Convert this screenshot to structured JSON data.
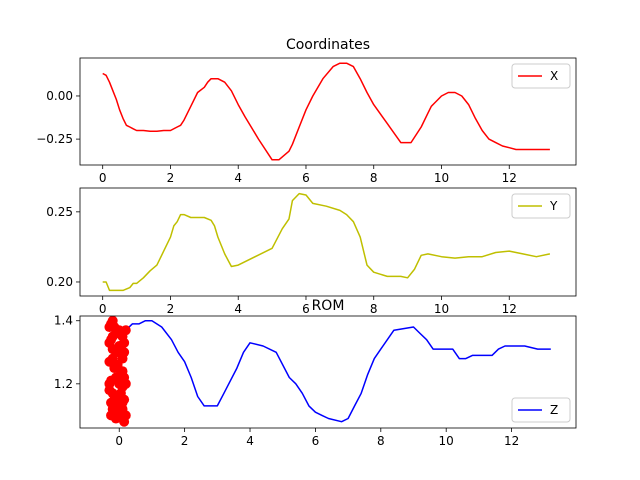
{
  "figure": {
    "title": "Coordinates"
  },
  "chart_data": [
    {
      "type": "line",
      "title": "Coordinates",
      "xlabel": "",
      "ylabel": "",
      "xlim": [
        -0.67,
        13.97
      ],
      "ylim": [
        -0.4,
        0.22
      ],
      "xticks": [
        0,
        2,
        4,
        6,
        8,
        10,
        12
      ],
      "yticks": [
        0.0,
        -0.25
      ],
      "ytick_labels": [
        "0.00",
        "−0.25"
      ],
      "legend": "top-right",
      "grid": false,
      "series": [
        {
          "name": "X",
          "color": "#ff0000",
          "x": [
            0.0,
            0.1,
            0.2,
            0.3,
            0.4,
            0.5,
            0.6,
            0.7,
            0.8,
            0.9,
            1.0,
            1.2,
            1.4,
            1.6,
            1.8,
            2.0,
            2.2,
            2.3,
            2.4,
            2.5,
            2.6,
            2.8,
            3.0,
            3.1,
            3.2,
            3.4,
            3.6,
            3.8,
            4.0,
            4.2,
            4.6,
            5.0,
            5.2,
            5.5,
            5.6,
            5.8,
            6.0,
            6.2,
            6.5,
            6.8,
            7.0,
            7.2,
            7.4,
            7.6,
            7.8,
            8.0,
            8.4,
            8.8,
            9.1,
            9.4,
            9.6,
            9.7,
            9.8,
            10.0,
            10.2,
            10.4,
            10.6,
            10.8,
            11.0,
            11.2,
            11.4,
            11.6,
            11.8,
            12.0,
            12.2,
            12.4,
            12.8,
            13.2
          ],
          "values": [
            0.13,
            0.12,
            0.08,
            0.03,
            -0.02,
            -0.08,
            -0.13,
            -0.17,
            -0.18,
            -0.19,
            -0.2,
            -0.2,
            -0.205,
            -0.205,
            -0.2,
            -0.2,
            -0.18,
            -0.17,
            -0.14,
            -0.1,
            -0.06,
            0.02,
            0.05,
            0.08,
            0.1,
            0.1,
            0.08,
            0.03,
            -0.05,
            -0.12,
            -0.25,
            -0.37,
            -0.37,
            -0.32,
            -0.28,
            -0.18,
            -0.08,
            0.0,
            0.1,
            0.17,
            0.19,
            0.19,
            0.17,
            0.1,
            0.02,
            -0.05,
            -0.16,
            -0.27,
            -0.27,
            -0.18,
            -0.1,
            -0.06,
            -0.04,
            0.0,
            0.02,
            0.02,
            0.0,
            -0.05,
            -0.13,
            -0.2,
            -0.25,
            -0.27,
            -0.29,
            -0.3,
            -0.31,
            -0.31,
            -0.31,
            -0.31
          ]
        }
      ]
    },
    {
      "type": "line",
      "title": "",
      "xlabel": "",
      "ylabel": "",
      "xlim": [
        -0.67,
        13.97
      ],
      "ylim": [
        0.19,
        0.267
      ],
      "xticks": [
        0,
        2,
        4,
        6,
        8,
        10,
        12
      ],
      "yticks": [
        0.25,
        0.2
      ],
      "ytick_labels": [
        "0.25",
        "0.20"
      ],
      "legend": "top-right",
      "grid": false,
      "series": [
        {
          "name": "Y",
          "color": "#bfbf00",
          "x": [
            0.0,
            0.1,
            0.2,
            0.4,
            0.6,
            0.8,
            0.9,
            1.0,
            1.2,
            1.4,
            1.6,
            1.8,
            2.0,
            2.1,
            2.2,
            2.3,
            2.4,
            2.6,
            2.8,
            3.0,
            3.2,
            3.3,
            3.4,
            3.5,
            3.6,
            3.8,
            4.0,
            5.0,
            5.3,
            5.5,
            5.6,
            5.8,
            6.0,
            6.2,
            6.6,
            7.0,
            7.2,
            7.4,
            7.6,
            7.8,
            8.0,
            8.4,
            8.8,
            9.0,
            9.2,
            9.4,
            9.6,
            10.0,
            10.4,
            10.8,
            11.2,
            11.6,
            12.0,
            12.4,
            12.8,
            13.2
          ],
          "values": [
            0.2,
            0.2,
            0.194,
            0.194,
            0.194,
            0.196,
            0.199,
            0.199,
            0.203,
            0.208,
            0.212,
            0.222,
            0.232,
            0.24,
            0.243,
            0.248,
            0.248,
            0.246,
            0.246,
            0.246,
            0.244,
            0.24,
            0.232,
            0.226,
            0.22,
            0.211,
            0.212,
            0.224,
            0.238,
            0.245,
            0.258,
            0.263,
            0.262,
            0.256,
            0.254,
            0.251,
            0.248,
            0.243,
            0.232,
            0.212,
            0.207,
            0.204,
            0.204,
            0.203,
            0.209,
            0.219,
            0.22,
            0.218,
            0.217,
            0.218,
            0.218,
            0.221,
            0.222,
            0.22,
            0.218,
            0.22
          ]
        }
      ]
    },
    {
      "type": "line",
      "title": "ROM",
      "xlabel": "",
      "ylabel": "",
      "xlim": [
        -1.2,
        13.97
      ],
      "ylim": [
        1.06,
        1.415
      ],
      "xticks": [
        0,
        2,
        4,
        6,
        8,
        10,
        12
      ],
      "yticks": [
        1.4,
        1.2
      ],
      "ytick_labels": [
        "1.4",
        "1.2"
      ],
      "legend": "lower-right",
      "grid": false,
      "series": [
        {
          "name": "Z",
          "color": "#0000ff",
          "x": [
            0.0,
            0.1,
            0.2,
            0.4,
            0.6,
            0.8,
            1.0,
            1.3,
            1.6,
            1.8,
            2.0,
            2.2,
            2.4,
            2.6,
            2.8,
            3.0,
            3.2,
            3.4,
            3.6,
            3.8,
            4.0,
            4.4,
            4.8,
            5.2,
            5.4,
            5.6,
            5.8,
            6.0,
            6.2,
            6.4,
            6.8,
            7.0,
            7.2,
            7.4,
            7.6,
            7.8,
            8.0,
            8.4,
            9.0,
            9.2,
            9.4,
            9.6,
            9.8,
            10.2,
            10.4,
            10.6,
            10.8,
            11.0,
            11.4,
            11.6,
            11.8,
            12.0,
            12.4,
            12.8,
            13.0,
            13.2
          ],
          "values": [
            1.3,
            1.33,
            1.37,
            1.39,
            1.39,
            1.4,
            1.4,
            1.38,
            1.34,
            1.3,
            1.27,
            1.22,
            1.16,
            1.13,
            1.13,
            1.13,
            1.17,
            1.21,
            1.25,
            1.3,
            1.33,
            1.32,
            1.3,
            1.22,
            1.2,
            1.17,
            1.13,
            1.11,
            1.1,
            1.09,
            1.08,
            1.09,
            1.13,
            1.17,
            1.23,
            1.28,
            1.31,
            1.37,
            1.38,
            1.36,
            1.34,
            1.31,
            1.31,
            1.31,
            1.28,
            1.28,
            1.29,
            1.29,
            1.29,
            1.31,
            1.32,
            1.32,
            1.32,
            1.31,
            1.31,
            1.31
          ]
        },
        {
          "name": "",
          "type": "scatter",
          "color": "#ff0000",
          "x": [
            -0.3,
            -0.25,
            -0.2,
            -0.15,
            -0.1,
            0.0,
            0.1,
            0.15,
            0.2,
            -0.3,
            -0.25,
            -0.2,
            -0.1,
            0.0,
            0.1,
            0.15,
            -0.3,
            -0.2,
            -0.15,
            -0.05,
            0.05,
            0.15,
            -0.25,
            -0.1,
            0.0,
            0.1,
            0.2,
            -0.3,
            -0.2,
            -0.1,
            0.05,
            0.15,
            -0.25,
            -0.15,
            0.0,
            0.1,
            -0.3,
            -0.2,
            -0.05,
            0.1,
            0.2,
            -0.25,
            -0.1,
            0.05,
            0.15,
            -0.2,
            0.0,
            0.1
          ],
          "values": [
            1.38,
            1.39,
            1.4,
            1.38,
            1.36,
            1.37,
            1.35,
            1.33,
            1.37,
            1.33,
            1.34,
            1.31,
            1.3,
            1.32,
            1.28,
            1.3,
            1.27,
            1.28,
            1.25,
            1.26,
            1.24,
            1.22,
            1.21,
            1.22,
            1.2,
            1.19,
            1.2,
            1.18,
            1.17,
            1.16,
            1.17,
            1.15,
            1.14,
            1.15,
            1.13,
            1.14,
            1.2,
            1.12,
            1.11,
            1.12,
            1.1,
            1.1,
            1.09,
            1.1,
            1.08,
            1.35,
            1.22,
            1.24
          ]
        }
      ]
    }
  ]
}
